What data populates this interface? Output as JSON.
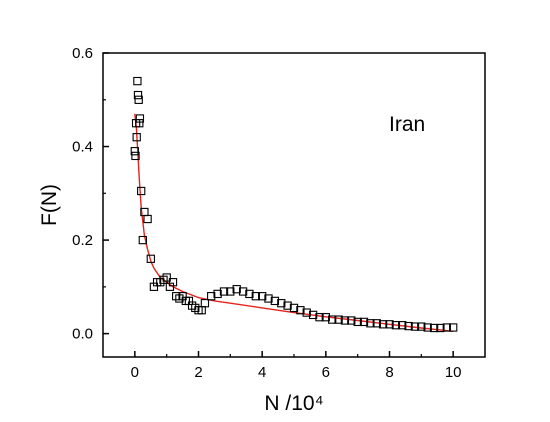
{
  "chart_data": {
    "type": "scatter",
    "xlabel": "N /10⁴",
    "ylabel": "F(N)",
    "annotation": "Iran",
    "xlim": [
      -1,
      11
    ],
    "ylim": [
      -0.05,
      0.6
    ],
    "x_ticks": [
      0,
      2,
      4,
      6,
      8,
      10
    ],
    "x_tick_labels": [
      "0",
      "2",
      "4",
      "6",
      "8",
      "10"
    ],
    "y_ticks": [
      0.0,
      0.2,
      0.4,
      0.6
    ],
    "y_tick_labels": [
      "0.0",
      "0.2",
      "0.4",
      "0.6"
    ],
    "grid": false,
    "legend": "none",
    "marker_color": "#000000",
    "fit_color": "#e8231c",
    "series": [
      {
        "type": "scatter",
        "marker": "open-square",
        "x": [
          0.0,
          0.02,
          0.04,
          0.06,
          0.08,
          0.1,
          0.12,
          0.14,
          0.16,
          0.2,
          0.25,
          0.3,
          0.4,
          0.5,
          0.6,
          0.7,
          0.8,
          0.9,
          1.0,
          1.1,
          1.2,
          1.3,
          1.4,
          1.5,
          1.6,
          1.7,
          1.8,
          1.9,
          2.0,
          2.1,
          2.2,
          2.4,
          2.6,
          2.8,
          3.0,
          3.2,
          3.4,
          3.6,
          3.8,
          4.0,
          4.2,
          4.4,
          4.6,
          4.8,
          5.0,
          5.2,
          5.4,
          5.6,
          5.8,
          6.0,
          6.2,
          6.4,
          6.6,
          6.8,
          7.0,
          7.2,
          7.4,
          7.6,
          7.8,
          8.0,
          8.2,
          8.4,
          8.6,
          8.8,
          9.0,
          9.2,
          9.4,
          9.6,
          9.8,
          10.0
        ],
        "y": [
          0.39,
          0.38,
          0.45,
          0.42,
          0.54,
          0.51,
          0.5,
          0.45,
          0.46,
          0.305,
          0.2,
          0.26,
          0.245,
          0.16,
          0.1,
          0.11,
          0.11,
          0.115,
          0.12,
          0.1,
          0.11,
          0.08,
          0.075,
          0.08,
          0.07,
          0.07,
          0.06,
          0.055,
          0.05,
          0.05,
          0.065,
          0.08,
          0.085,
          0.09,
          0.09,
          0.095,
          0.09,
          0.085,
          0.08,
          0.08,
          0.075,
          0.07,
          0.065,
          0.06,
          0.055,
          0.05,
          0.045,
          0.04,
          0.035,
          0.035,
          0.03,
          0.03,
          0.028,
          0.028,
          0.025,
          0.025,
          0.022,
          0.022,
          0.02,
          0.02,
          0.018,
          0.018,
          0.016,
          0.015,
          0.015,
          0.013,
          0.012,
          0.012,
          0.013,
          0.013
        ]
      },
      {
        "type": "line",
        "x": [
          0.0,
          0.05,
          0.1,
          0.15,
          0.2,
          0.3,
          0.4,
          0.5,
          0.6,
          0.8,
          1.0,
          1.2,
          1.5,
          2.0,
          2.5,
          3.0,
          4.0,
          5.0,
          6.0,
          7.0,
          8.0,
          9.0,
          10.0
        ],
        "y": [
          0.47,
          0.44,
          0.38,
          0.32,
          0.27,
          0.21,
          0.18,
          0.155,
          0.14,
          0.12,
          0.11,
          0.1,
          0.09,
          0.077,
          0.07,
          0.065,
          0.055,
          0.045,
          0.036,
          0.028,
          0.02,
          0.012,
          0.005
        ]
      }
    ]
  }
}
